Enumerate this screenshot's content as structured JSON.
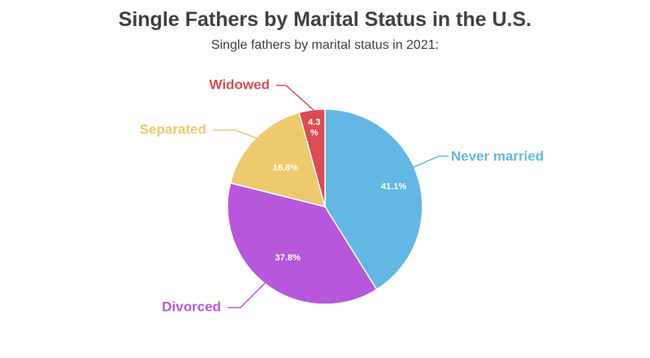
{
  "chart_data": {
    "type": "pie",
    "title": "Single Fathers by Marital Status in the U.S.",
    "subtitle": "Single fathers by marital status in 2021:",
    "slices": [
      {
        "label": "Never married",
        "value": 41.1,
        "value_label": "41.1%",
        "color": "#63b7e4"
      },
      {
        "label": "Divorced",
        "value": 37.8,
        "value_label": "37.8%",
        "color": "#b657dc"
      },
      {
        "label": "Separated",
        "value": 16.8,
        "value_label": "16.8%",
        "color": "#efc96e"
      },
      {
        "label": "Widowed",
        "value": 4.3,
        "value_label_lines": [
          "4.3",
          "%"
        ],
        "color": "#dc4c52"
      }
    ],
    "legend": "none"
  }
}
